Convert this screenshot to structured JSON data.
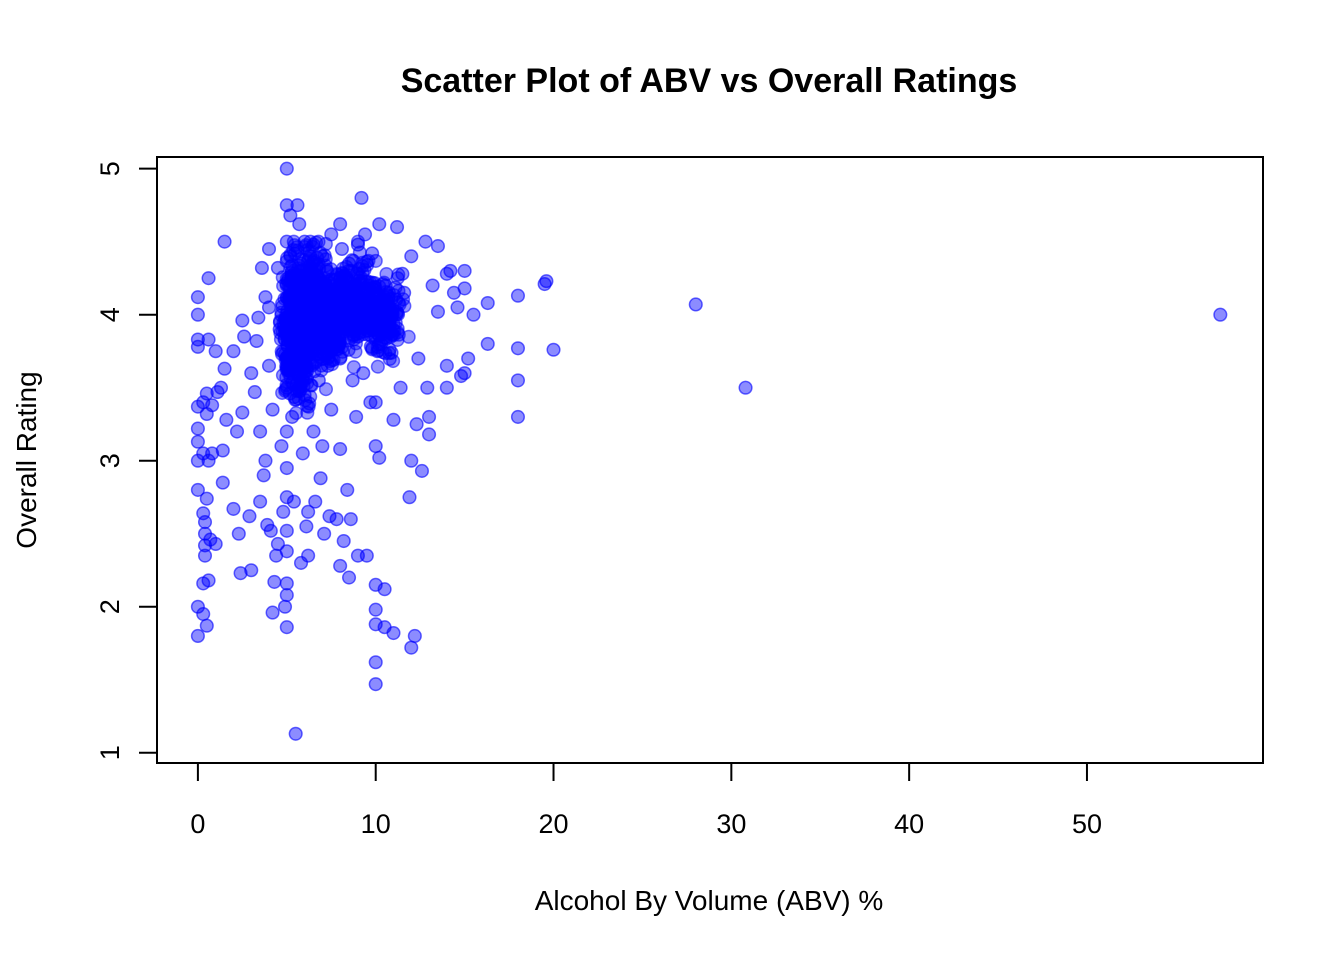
{
  "chart_data": {
    "type": "scatter",
    "title": "Scatter Plot of ABV vs Overall Ratings",
    "xlabel": "Alcohol By Volume (ABV) %",
    "ylabel": "Overall Rating",
    "xlim": [
      -2.3,
      59.9
    ],
    "ylim": [
      0.93,
      5.08
    ],
    "x_ticks": [
      0,
      10,
      20,
      30,
      40,
      50
    ],
    "y_ticks": [
      1,
      2,
      3,
      4,
      5
    ],
    "grid": false,
    "legend": "none",
    "point_color": "#0000FF",
    "series": [
      {
        "points": [
          [
            0.0,
            4.0
          ],
          [
            0.0,
            4.12
          ],
          [
            0.0,
            3.83
          ],
          [
            0.0,
            3.78
          ],
          [
            0.0,
            3.37
          ],
          [
            0.0,
            3.22
          ],
          [
            0.0,
            3.13
          ],
          [
            0.0,
            3.0
          ],
          [
            0.0,
            2.8
          ],
          [
            0.0,
            2.0
          ],
          [
            0.0,
            1.8
          ],
          [
            0.3,
            3.4
          ],
          [
            0.3,
            3.05
          ],
          [
            0.3,
            2.64
          ],
          [
            0.3,
            2.16
          ],
          [
            0.3,
            1.95
          ],
          [
            0.4,
            2.58
          ],
          [
            0.4,
            2.5
          ],
          [
            0.4,
            2.42
          ],
          [
            0.4,
            2.35
          ],
          [
            0.5,
            2.74
          ],
          [
            0.5,
            3.46
          ],
          [
            0.5,
            3.32
          ],
          [
            0.5,
            1.87
          ],
          [
            0.6,
            4.25
          ],
          [
            0.6,
            3.83
          ],
          [
            0.6,
            3.0
          ],
          [
            0.6,
            2.18
          ],
          [
            0.7,
            2.46
          ],
          [
            0.8,
            3.38
          ],
          [
            0.8,
            3.05
          ],
          [
            1.0,
            3.75
          ],
          [
            1.0,
            2.43
          ],
          [
            1.1,
            3.47
          ],
          [
            1.3,
            3.5
          ],
          [
            1.4,
            2.85
          ],
          [
            1.4,
            3.07
          ],
          [
            1.5,
            4.5
          ],
          [
            1.5,
            3.63
          ],
          [
            1.6,
            3.28
          ],
          [
            2.0,
            3.75
          ],
          [
            2.0,
            2.67
          ],
          [
            2.2,
            3.2
          ],
          [
            2.3,
            2.5
          ],
          [
            2.4,
            2.23
          ],
          [
            2.5,
            3.33
          ],
          [
            2.5,
            3.96
          ],
          [
            2.6,
            3.85
          ],
          [
            2.9,
            2.62
          ],
          [
            3.0,
            3.6
          ],
          [
            3.0,
            2.25
          ],
          [
            3.2,
            3.47
          ],
          [
            3.3,
            3.82
          ],
          [
            3.4,
            3.98
          ],
          [
            3.5,
            2.72
          ],
          [
            3.5,
            3.2
          ],
          [
            3.6,
            4.32
          ],
          [
            3.7,
            2.9
          ],
          [
            3.8,
            3.0
          ],
          [
            3.8,
            4.12
          ],
          [
            3.9,
            2.56
          ],
          [
            4.0,
            4.45
          ],
          [
            4.0,
            4.05
          ],
          [
            4.0,
            3.65
          ],
          [
            4.1,
            2.52
          ],
          [
            4.2,
            3.35
          ],
          [
            4.2,
            1.96
          ],
          [
            4.3,
            2.17
          ],
          [
            4.4,
            2.35
          ],
          [
            4.5,
            2.43
          ],
          [
            4.5,
            4.32
          ],
          [
            4.6,
            3.9
          ],
          [
            4.7,
            3.1
          ],
          [
            4.8,
            2.65
          ],
          [
            4.9,
            2.0
          ],
          [
            5.0,
            5.0
          ],
          [
            5.0,
            4.75
          ],
          [
            5.0,
            4.5
          ],
          [
            5.0,
            4.2
          ],
          [
            5.0,
            3.95
          ],
          [
            5.0,
            3.7
          ],
          [
            5.0,
            3.5
          ],
          [
            5.0,
            3.2
          ],
          [
            5.0,
            2.95
          ],
          [
            5.0,
            2.75
          ],
          [
            5.0,
            2.52
          ],
          [
            5.0,
            2.38
          ],
          [
            5.0,
            2.16
          ],
          [
            5.0,
            2.08
          ],
          [
            5.0,
            1.86
          ],
          [
            5.2,
            4.68
          ],
          [
            5.2,
            4.4
          ],
          [
            5.2,
            3.85
          ],
          [
            5.3,
            3.3
          ],
          [
            5.4,
            2.72
          ],
          [
            5.5,
            1.13
          ],
          [
            5.5,
            4.1
          ],
          [
            5.6,
            4.75
          ],
          [
            5.6,
            3.6
          ],
          [
            5.7,
            4.62
          ],
          [
            5.8,
            2.3
          ],
          [
            5.8,
            4.35
          ],
          [
            5.9,
            3.05
          ],
          [
            6.0,
            4.5
          ],
          [
            6.0,
            4.2
          ],
          [
            6.0,
            3.98
          ],
          [
            6.0,
            3.45
          ],
          [
            6.1,
            2.55
          ],
          [
            6.2,
            2.65
          ],
          [
            6.2,
            2.35
          ],
          [
            6.3,
            4.28
          ],
          [
            6.4,
            3.75
          ],
          [
            6.5,
            4.48
          ],
          [
            6.5,
            3.2
          ],
          [
            6.6,
            2.72
          ],
          [
            6.7,
            4.05
          ],
          [
            6.8,
            3.55
          ],
          [
            6.9,
            2.88
          ],
          [
            7.0,
            4.4
          ],
          [
            7.0,
            3.9
          ],
          [
            7.0,
            3.1
          ],
          [
            7.1,
            2.5
          ],
          [
            7.2,
            4.2
          ],
          [
            7.3,
            3.65
          ],
          [
            7.4,
            2.62
          ],
          [
            7.5,
            4.55
          ],
          [
            7.5,
            3.35
          ],
          [
            7.6,
            4.0
          ],
          [
            7.8,
            2.6
          ],
          [
            7.9,
            3.8
          ],
          [
            8.0,
            4.62
          ],
          [
            8.0,
            4.25
          ],
          [
            8.0,
            3.7
          ],
          [
            8.0,
            3.08
          ],
          [
            8.0,
            2.28
          ],
          [
            8.1,
            4.45
          ],
          [
            8.2,
            2.45
          ],
          [
            8.3,
            3.95
          ],
          [
            8.4,
            2.8
          ],
          [
            8.5,
            4.35
          ],
          [
            8.5,
            2.2
          ],
          [
            8.6,
            2.6
          ],
          [
            8.7,
            3.55
          ],
          [
            8.8,
            4.1
          ],
          [
            8.9,
            3.3
          ],
          [
            9.0,
            4.48
          ],
          [
            9.0,
            3.85
          ],
          [
            9.0,
            2.35
          ],
          [
            9.2,
            4.8
          ],
          [
            9.3,
            3.6
          ],
          [
            9.4,
            4.55
          ],
          [
            9.5,
            2.35
          ],
          [
            9.6,
            4.2
          ],
          [
            9.7,
            3.4
          ],
          [
            9.8,
            4.42
          ],
          [
            10.0,
            4.0
          ],
          [
            10.0,
            3.4
          ],
          [
            10.0,
            3.1
          ],
          [
            10.0,
            2.15
          ],
          [
            10.0,
            1.98
          ],
          [
            10.0,
            1.88
          ],
          [
            10.0,
            1.62
          ],
          [
            10.0,
            1.47
          ],
          [
            10.1,
            3.75
          ],
          [
            10.2,
            3.02
          ],
          [
            10.2,
            4.62
          ],
          [
            10.3,
            3.8
          ],
          [
            10.5,
            1.86
          ],
          [
            10.5,
            2.12
          ],
          [
            10.8,
            4.05
          ],
          [
            11.0,
            1.82
          ],
          [
            11.0,
            3.28
          ],
          [
            11.2,
            4.6
          ],
          [
            11.4,
            3.5
          ],
          [
            11.5,
            4.28
          ],
          [
            11.6,
            4.15
          ],
          [
            11.9,
            2.75
          ],
          [
            12.0,
            3.0
          ],
          [
            12.0,
            1.72
          ],
          [
            12.0,
            4.4
          ],
          [
            12.2,
            1.8
          ],
          [
            12.3,
            3.25
          ],
          [
            12.4,
            3.7
          ],
          [
            12.6,
            2.93
          ],
          [
            12.8,
            4.5
          ],
          [
            12.9,
            3.5
          ],
          [
            13.0,
            3.3
          ],
          [
            13.0,
            3.18
          ],
          [
            13.2,
            4.2
          ],
          [
            13.5,
            4.02
          ],
          [
            13.5,
            4.47
          ],
          [
            14.0,
            3.65
          ],
          [
            14.0,
            3.5
          ],
          [
            14.0,
            4.28
          ],
          [
            14.2,
            4.3
          ],
          [
            14.4,
            4.15
          ],
          [
            14.6,
            4.05
          ],
          [
            14.8,
            3.58
          ],
          [
            15.0,
            4.18
          ],
          [
            15.0,
            3.6
          ],
          [
            15.0,
            4.3
          ],
          [
            15.2,
            3.7
          ],
          [
            15.5,
            4.0
          ],
          [
            16.3,
            3.8
          ],
          [
            16.3,
            4.08
          ],
          [
            18.0,
            4.13
          ],
          [
            18.0,
            3.77
          ],
          [
            18.0,
            3.55
          ],
          [
            18.0,
            3.3
          ],
          [
            19.5,
            4.21
          ],
          [
            19.6,
            4.23
          ],
          [
            20.0,
            3.76
          ],
          [
            28.0,
            4.07
          ],
          [
            30.8,
            3.5
          ],
          [
            57.5,
            4.0
          ]
        ],
        "dense_region": {
          "description_x_range": [
            3.5,
            12.5
          ],
          "description_y_range": [
            2.4,
            4.5
          ],
          "centers": [
            [
              5.5,
              3.9
            ],
            [
              6.5,
              4.05
            ],
            [
              7.5,
              4.0
            ],
            [
              9.0,
              4.05
            ],
            [
              10.5,
              4.0
            ]
          ]
        }
      }
    ]
  }
}
